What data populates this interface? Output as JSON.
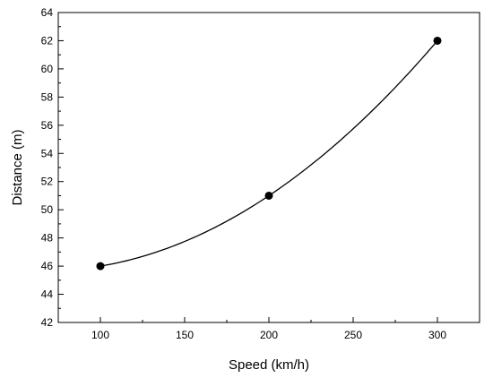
{
  "chart_data": {
    "type": "line",
    "title": "",
    "xlabel": "Speed (km/h)",
    "ylabel": "Distance (m)",
    "xlim": [
      75,
      325
    ],
    "ylim": [
      42,
      64
    ],
    "x_ticks": [
      100,
      150,
      200,
      250,
      300
    ],
    "y_ticks": [
      42,
      44,
      46,
      48,
      50,
      52,
      54,
      56,
      58,
      60,
      62,
      64
    ],
    "x_minor_step": 25,
    "y_minor_step": 1,
    "grid": false,
    "legend": "none",
    "series": [
      {
        "x": [
          100,
          200,
          300
        ],
        "y": [
          46,
          51,
          62
        ],
        "line": "smooth",
        "marker": "circle",
        "color": "#000000"
      }
    ]
  }
}
